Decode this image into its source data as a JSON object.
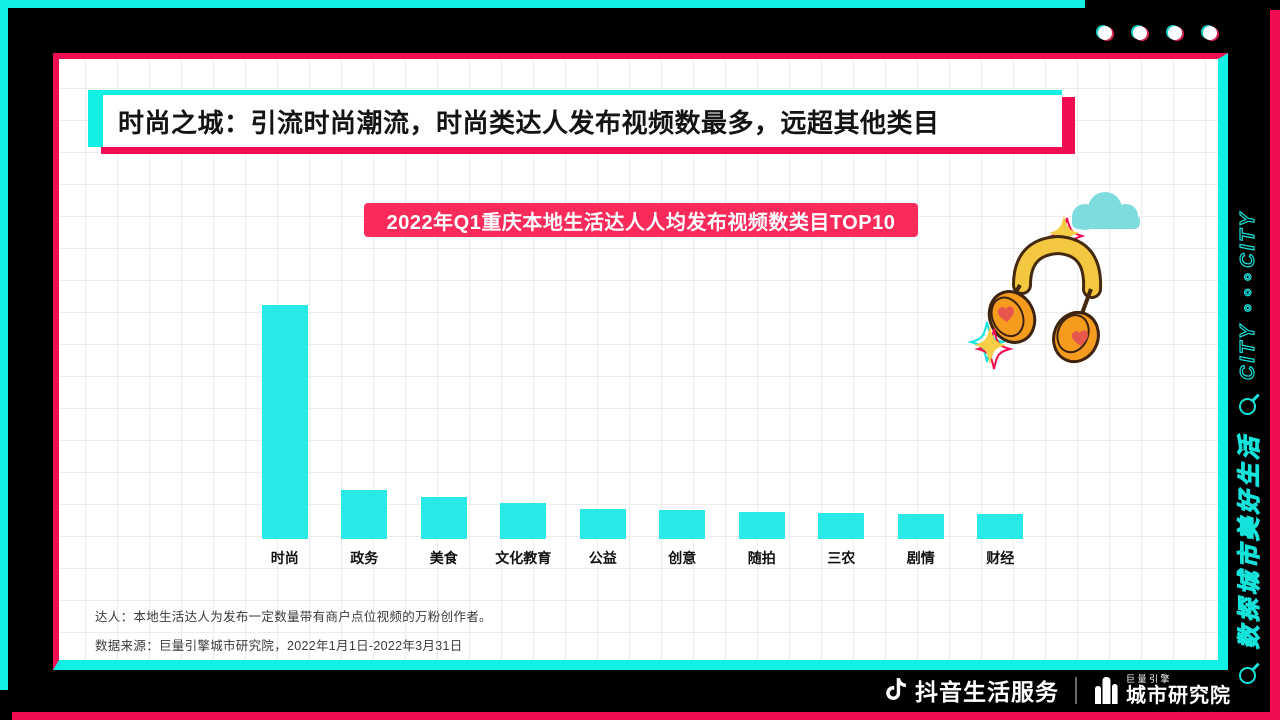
{
  "colors": {
    "frame_cyan": "#12F0E6",
    "frame_pink": "#F20C52",
    "banner_pink": "#FA2A5A",
    "bar_cyan": "#28E9E5",
    "background_black": "#000000",
    "panel_white": "#FFFFFF"
  },
  "decor": {
    "top_right_dots": 4,
    "illustration": [
      "cloud",
      "sparkle",
      "headphones-with-hearts",
      "sparkle"
    ]
  },
  "header": {
    "title": "时尚之城：引流时尚潮流，时尚类达人发布视频数最多，远超其他类目"
  },
  "chart_data": {
    "type": "bar",
    "title": "2022年Q1重庆本地生活达人人均发布视频数类目TOP10",
    "categories": [
      "时尚",
      "政务",
      "美食",
      "文化教育",
      "公益",
      "创意",
      "随拍",
      "三农",
      "剧情",
      "财经"
    ],
    "values": [
      100,
      21,
      18,
      15.5,
      13,
      12.5,
      11.5,
      11,
      10.5,
      10.5
    ],
    "value_note": "no y-axis or data labels shown; values estimated relative to 时尚=100 from bar heights",
    "xlabel": "",
    "ylabel": "",
    "bar_color": "#28E9E5",
    "grid": "light graph-paper background grid",
    "legend": "none"
  },
  "footnotes": {
    "creator_def": "达人：本地生活达人为发布一定数量带有商户点位视频的万粉创作者。",
    "source": "数据来源：巨量引擎城市研究院，2022年1月1日-2022年3月31日"
  },
  "side_rail": {
    "cn": "数探城市美好生活",
    "en": "CITY ∘∘∘CITY",
    "icons": [
      "magnifier-icon",
      "magnifier-icon"
    ]
  },
  "brand": {
    "douyin": "抖音生活服务",
    "engine_small": "巨量引擎",
    "institute": "城市研究院"
  }
}
